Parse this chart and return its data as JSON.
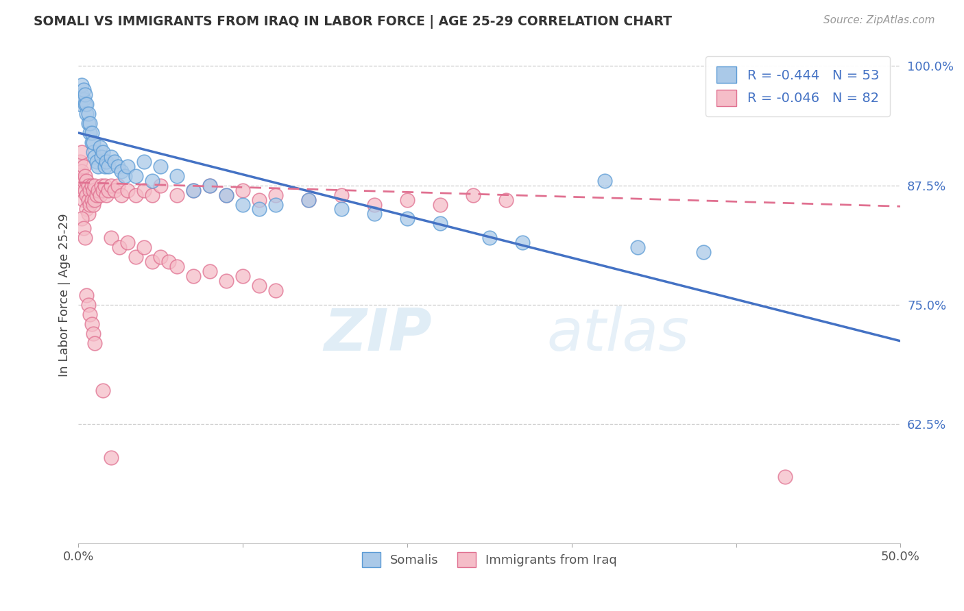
{
  "title": "SOMALI VS IMMIGRANTS FROM IRAQ IN LABOR FORCE | AGE 25-29 CORRELATION CHART",
  "source_text": "Source: ZipAtlas.com",
  "ylabel": "In Labor Force | Age 25-29",
  "xmin": 0.0,
  "xmax": 0.5,
  "ymin": 0.5,
  "ymax": 1.02,
  "yticks": [
    0.625,
    0.75,
    0.875,
    1.0
  ],
  "ytick_labels": [
    "62.5%",
    "75.0%",
    "87.5%",
    "100.0%"
  ],
  "watermark_zip": "ZIP",
  "watermark_atlas": "atlas",
  "somali_color": "#aac9e8",
  "somali_edge_color": "#5b9bd5",
  "iraq_color": "#f5bdc8",
  "iraq_edge_color": "#e07090",
  "trend_blue": "#4472c4",
  "trend_pink": "#e07090",
  "somali_trend_x0": 0.0,
  "somali_trend_y0": 0.93,
  "somali_trend_x1": 0.5,
  "somali_trend_y1": 0.712,
  "iraq_trend_x0": 0.0,
  "iraq_trend_y0": 0.878,
  "iraq_trend_x1": 0.5,
  "iraq_trend_y1": 0.853,
  "legend_line1": "R = -0.444   N = 53",
  "legend_line2": "R = -0.046   N = 82",
  "bottom_label1": "Somalis",
  "bottom_label2": "Immigrants from Iraq",
  "somali_x": [
    0.001,
    0.002,
    0.002,
    0.003,
    0.003,
    0.004,
    0.004,
    0.005,
    0.005,
    0.006,
    0.006,
    0.007,
    0.007,
    0.008,
    0.008,
    0.009,
    0.009,
    0.01,
    0.011,
    0.012,
    0.013,
    0.014,
    0.015,
    0.016,
    0.017,
    0.018,
    0.02,
    0.022,
    0.024,
    0.026,
    0.028,
    0.03,
    0.035,
    0.04,
    0.045,
    0.05,
    0.06,
    0.07,
    0.08,
    0.09,
    0.1,
    0.11,
    0.12,
    0.14,
    0.16,
    0.18,
    0.2,
    0.22,
    0.25,
    0.27,
    0.32,
    0.34,
    0.38
  ],
  "somali_y": [
    0.96,
    0.97,
    0.98,
    0.965,
    0.975,
    0.96,
    0.97,
    0.95,
    0.96,
    0.94,
    0.95,
    0.93,
    0.94,
    0.92,
    0.93,
    0.91,
    0.92,
    0.905,
    0.9,
    0.895,
    0.915,
    0.905,
    0.91,
    0.895,
    0.9,
    0.895,
    0.905,
    0.9,
    0.895,
    0.89,
    0.885,
    0.895,
    0.885,
    0.9,
    0.88,
    0.895,
    0.885,
    0.87,
    0.875,
    0.865,
    0.855,
    0.85,
    0.855,
    0.86,
    0.85,
    0.845,
    0.84,
    0.835,
    0.82,
    0.815,
    0.88,
    0.81,
    0.805
  ],
  "iraq_x": [
    0.001,
    0.001,
    0.002,
    0.002,
    0.002,
    0.003,
    0.003,
    0.003,
    0.004,
    0.004,
    0.005,
    0.005,
    0.005,
    0.006,
    0.006,
    0.006,
    0.007,
    0.007,
    0.008,
    0.008,
    0.009,
    0.009,
    0.01,
    0.01,
    0.011,
    0.012,
    0.013,
    0.014,
    0.015,
    0.016,
    0.017,
    0.018,
    0.02,
    0.022,
    0.024,
    0.026,
    0.03,
    0.035,
    0.04,
    0.045,
    0.05,
    0.06,
    0.07,
    0.08,
    0.09,
    0.1,
    0.11,
    0.12,
    0.14,
    0.16,
    0.18,
    0.2,
    0.22,
    0.24,
    0.26,
    0.02,
    0.025,
    0.03,
    0.035,
    0.04,
    0.045,
    0.05,
    0.055,
    0.06,
    0.07,
    0.08,
    0.09,
    0.1,
    0.11,
    0.12,
    0.002,
    0.003,
    0.004,
    0.005,
    0.006,
    0.007,
    0.008,
    0.009,
    0.01,
    0.015,
    0.02,
    0.43
  ],
  "iraq_y": [
    0.9,
    0.88,
    0.91,
    0.89,
    0.87,
    0.895,
    0.88,
    0.86,
    0.885,
    0.87,
    0.88,
    0.865,
    0.85,
    0.875,
    0.86,
    0.845,
    0.87,
    0.855,
    0.875,
    0.86,
    0.87,
    0.855,
    0.875,
    0.86,
    0.865,
    0.87,
    0.865,
    0.875,
    0.87,
    0.875,
    0.865,
    0.87,
    0.875,
    0.87,
    0.875,
    0.865,
    0.87,
    0.865,
    0.87,
    0.865,
    0.875,
    0.865,
    0.87,
    0.875,
    0.865,
    0.87,
    0.86,
    0.865,
    0.86,
    0.865,
    0.855,
    0.86,
    0.855,
    0.865,
    0.86,
    0.82,
    0.81,
    0.815,
    0.8,
    0.81,
    0.795,
    0.8,
    0.795,
    0.79,
    0.78,
    0.785,
    0.775,
    0.78,
    0.77,
    0.765,
    0.84,
    0.83,
    0.82,
    0.76,
    0.75,
    0.74,
    0.73,
    0.72,
    0.71,
    0.66,
    0.59,
    0.57
  ]
}
